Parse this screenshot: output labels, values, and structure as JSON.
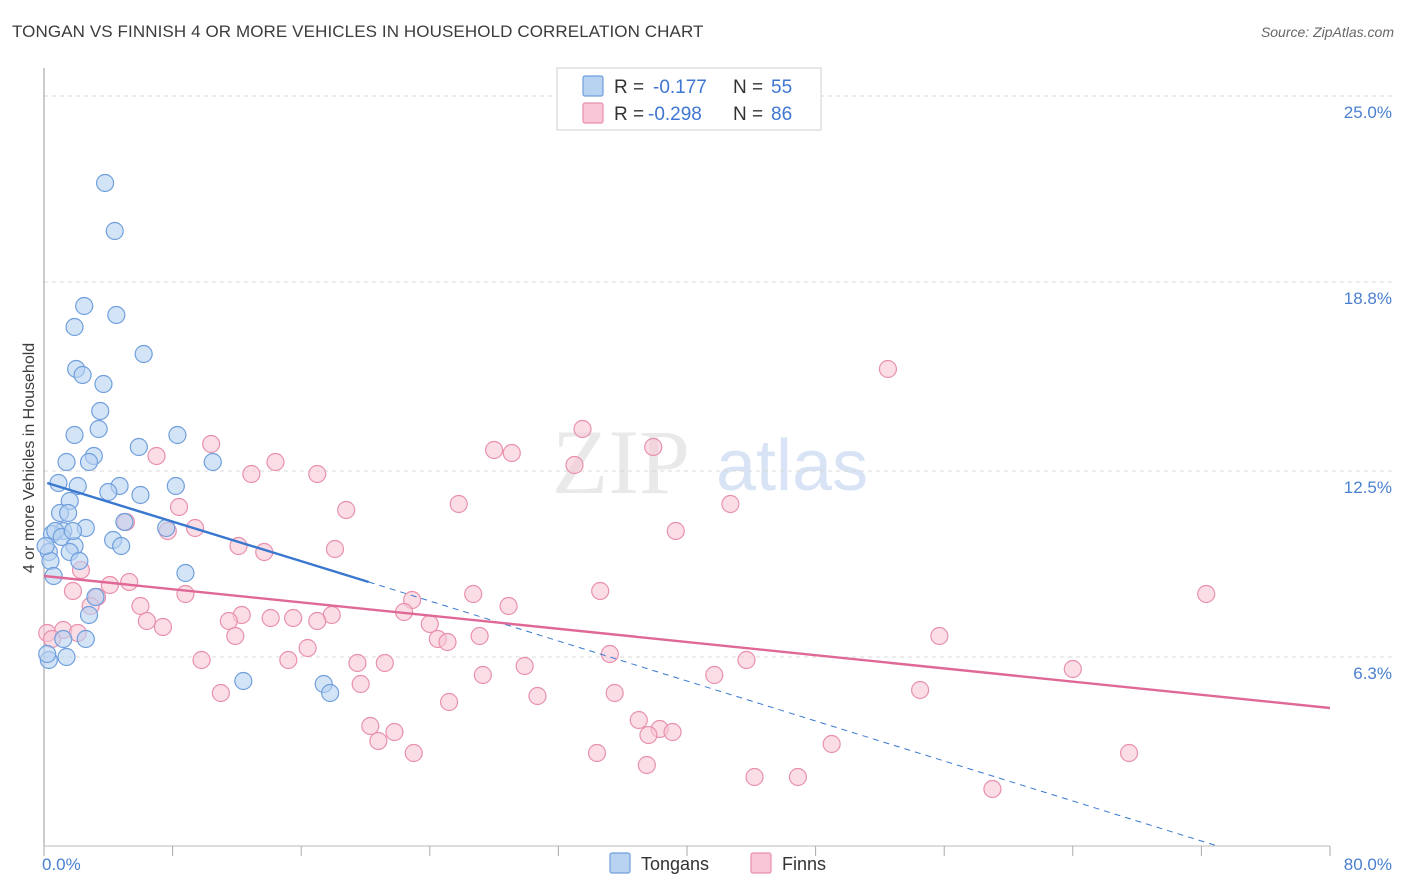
{
  "header": {
    "title": "TONGAN VS FINNISH 4 OR MORE VEHICLES IN HOUSEHOLD CORRELATION CHART",
    "source": "Source: ZipAtlas.com"
  },
  "legend": {
    "tongans": {
      "r_label": "R =",
      "r_value": "-0.177",
      "n_label": "N =",
      "n_value": "55"
    },
    "finns": {
      "r_label": "R =",
      "r_value": "-0.298",
      "n_label": "N =",
      "n_value": "86"
    }
  },
  "bottom_legend": {
    "tongans": "Tongans",
    "finns": "Finns"
  },
  "watermark": {
    "zip": "ZIP",
    "atlas": "atlas"
  },
  "colors": {
    "tongans_fill": "#b8d2f2",
    "tongans_stroke": "#6f9fdc",
    "tongans_line": "#3a78d0",
    "finns_fill": "#f8c6d6",
    "finns_stroke": "#e890ad",
    "finns_line": "#e06896",
    "tick_text": "#4a7fd0",
    "grid": "#d8d8d8"
  },
  "chart_data": {
    "type": "scatter",
    "title": "TONGAN VS FINNISH 4 OR MORE VEHICLES IN HOUSEHOLD CORRELATION CHART",
    "xlabel": "",
    "ylabel": "4 or more Vehicles in Household",
    "xlim": [
      0,
      80
    ],
    "ylim": [
      0,
      25.8
    ],
    "x_tick_labels": [
      "0.0%",
      "80.0%"
    ],
    "y_ticks": [
      6.3,
      12.5,
      18.8,
      25.0
    ],
    "y_tick_labels": [
      "6.3%",
      "12.5%",
      "18.8%",
      "25.0%"
    ],
    "grid": true,
    "legend_position": "top-center",
    "series": [
      {
        "name": "Tongans",
        "r": -0.177,
        "n": 55,
        "trend": {
          "x": [
            0.2,
            20.2
          ],
          "y": [
            12.1,
            8.8
          ],
          "dashed_extension_to": [
            73.0,
            0.0
          ]
        },
        "points": [
          [
            3.8,
            22.1
          ],
          [
            4.4,
            20.5
          ],
          [
            2.5,
            18.0
          ],
          [
            4.5,
            17.7
          ],
          [
            1.9,
            17.3
          ],
          [
            6.2,
            16.4
          ],
          [
            2.0,
            15.9
          ],
          [
            2.4,
            15.7
          ],
          [
            3.7,
            15.4
          ],
          [
            3.5,
            14.5
          ],
          [
            3.4,
            13.9
          ],
          [
            8.3,
            13.7
          ],
          [
            1.9,
            13.7
          ],
          [
            5.9,
            13.3
          ],
          [
            3.1,
            13.0
          ],
          [
            10.5,
            12.8
          ],
          [
            2.8,
            12.8
          ],
          [
            1.4,
            12.8
          ],
          [
            4.7,
            12.0
          ],
          [
            8.2,
            12.0
          ],
          [
            0.9,
            12.1
          ],
          [
            2.1,
            12.0
          ],
          [
            4.0,
            11.8
          ],
          [
            6.0,
            11.7
          ],
          [
            1.6,
            11.5
          ],
          [
            1.0,
            11.1
          ],
          [
            1.5,
            11.1
          ],
          [
            5.0,
            10.8
          ],
          [
            7.6,
            10.6
          ],
          [
            2.6,
            10.6
          ],
          [
            1.2,
            10.5
          ],
          [
            0.5,
            10.4
          ],
          [
            0.7,
            10.5
          ],
          [
            1.1,
            10.3
          ],
          [
            4.3,
            10.2
          ],
          [
            4.8,
            10.0
          ],
          [
            1.9,
            10.0
          ],
          [
            1.6,
            9.8
          ],
          [
            0.3,
            9.8
          ],
          [
            0.4,
            9.5
          ],
          [
            2.2,
            9.5
          ],
          [
            0.6,
            9.0
          ],
          [
            8.8,
            9.1
          ],
          [
            3.2,
            8.3
          ],
          [
            2.8,
            7.7
          ],
          [
            1.2,
            6.9
          ],
          [
            2.6,
            6.9
          ],
          [
            1.4,
            6.3
          ],
          [
            0.3,
            6.2
          ],
          [
            12.4,
            5.5
          ],
          [
            17.4,
            5.4
          ],
          [
            17.8,
            5.1
          ],
          [
            0.2,
            6.4
          ],
          [
            0.1,
            10.0
          ],
          [
            1.8,
            10.5
          ]
        ]
      },
      {
        "name": "Finns",
        "r": -0.298,
        "n": 86,
        "trend": {
          "x": [
            0.0,
            80.0
          ],
          "y": [
            9.0,
            4.6
          ]
        },
        "points": [
          [
            52.5,
            15.9
          ],
          [
            33.5,
            13.9
          ],
          [
            10.4,
            13.4
          ],
          [
            28.0,
            13.2
          ],
          [
            29.1,
            13.1
          ],
          [
            37.9,
            13.3
          ],
          [
            7.0,
            13.0
          ],
          [
            14.4,
            12.8
          ],
          [
            33.0,
            12.7
          ],
          [
            12.9,
            12.4
          ],
          [
            17.0,
            12.4
          ],
          [
            25.8,
            11.4
          ],
          [
            42.7,
            11.4
          ],
          [
            8.4,
            11.3
          ],
          [
            18.8,
            11.2
          ],
          [
            5.1,
            10.8
          ],
          [
            39.3,
            10.5
          ],
          [
            7.7,
            10.5
          ],
          [
            9.4,
            10.6
          ],
          [
            12.1,
            10.0
          ],
          [
            18.1,
            9.9
          ],
          [
            13.7,
            9.8
          ],
          [
            2.3,
            9.2
          ],
          [
            5.3,
            8.8
          ],
          [
            4.1,
            8.7
          ],
          [
            72.3,
            8.4
          ],
          [
            34.6,
            8.5
          ],
          [
            26.7,
            8.4
          ],
          [
            8.8,
            8.4
          ],
          [
            1.8,
            8.5
          ],
          [
            3.3,
            8.3
          ],
          [
            22.9,
            8.2
          ],
          [
            28.9,
            8.0
          ],
          [
            6.0,
            8.0
          ],
          [
            2.9,
            8.0
          ],
          [
            22.4,
            7.8
          ],
          [
            12.3,
            7.7
          ],
          [
            15.5,
            7.6
          ],
          [
            17.9,
            7.7
          ],
          [
            11.5,
            7.5
          ],
          [
            6.4,
            7.5
          ],
          [
            17.0,
            7.5
          ],
          [
            14.1,
            7.6
          ],
          [
            24.0,
            7.4
          ],
          [
            7.4,
            7.3
          ],
          [
            1.2,
            7.2
          ],
          [
            2.1,
            7.1
          ],
          [
            0.2,
            7.1
          ],
          [
            55.7,
            7.0
          ],
          [
            27.1,
            7.0
          ],
          [
            24.5,
            6.9
          ],
          [
            25.1,
            6.8
          ],
          [
            11.9,
            7.0
          ],
          [
            0.5,
            6.9
          ],
          [
            16.4,
            6.6
          ],
          [
            35.2,
            6.4
          ],
          [
            43.7,
            6.2
          ],
          [
            9.8,
            6.2
          ],
          [
            15.2,
            6.2
          ],
          [
            19.5,
            6.1
          ],
          [
            21.2,
            6.1
          ],
          [
            29.9,
            6.0
          ],
          [
            64.0,
            5.9
          ],
          [
            41.7,
            5.7
          ],
          [
            27.3,
            5.7
          ],
          [
            19.7,
            5.4
          ],
          [
            35.5,
            5.1
          ],
          [
            11.0,
            5.1
          ],
          [
            30.7,
            5.0
          ],
          [
            54.5,
            5.2
          ],
          [
            25.2,
            4.8
          ],
          [
            37.0,
            4.2
          ],
          [
            20.3,
            4.0
          ],
          [
            38.3,
            3.9
          ],
          [
            21.8,
            3.8
          ],
          [
            39.1,
            3.8
          ],
          [
            37.6,
            3.7
          ],
          [
            20.8,
            3.5
          ],
          [
            49.0,
            3.4
          ],
          [
            23.0,
            3.1
          ],
          [
            34.4,
            3.1
          ],
          [
            67.5,
            3.1
          ],
          [
            37.5,
            2.7
          ],
          [
            44.2,
            2.3
          ],
          [
            46.9,
            2.3
          ],
          [
            59.0,
            1.9
          ]
        ]
      }
    ]
  }
}
